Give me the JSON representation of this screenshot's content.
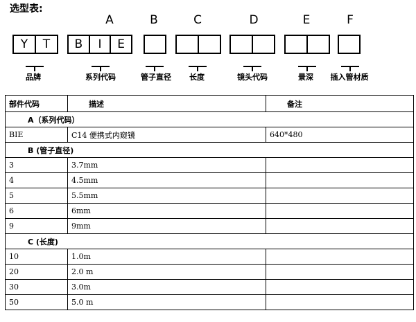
{
  "title": "选型表:",
  "letters": [
    "A",
    "B",
    "C",
    "D",
    "E",
    "F"
  ],
  "boxes": {
    "brand": [
      "Y",
      "T"
    ],
    "series": [
      "B",
      "I",
      "E"
    ]
  },
  "labels": [
    "品牌",
    "系列代码",
    "管子直径",
    "长度",
    "镜头代码",
    "景深",
    "插入管材质"
  ],
  "table": {
    "headers": [
      "部件代码",
      "描述",
      "备注"
    ],
    "sections": [
      {
        "title": "A（系列代码）",
        "rows": [
          [
            "BIE",
            "C14 便携式内窥镜",
            "640*480"
          ]
        ]
      },
      {
        "title": "B (管子直径)",
        "rows": [
          [
            "3",
            "3.7mm",
            ""
          ],
          [
            "4",
            "4.5mm",
            ""
          ],
          [
            "5",
            "5.5mm",
            ""
          ],
          [
            "6",
            "6mm",
            ""
          ],
          [
            "9",
            "9mm",
            ""
          ]
        ]
      },
      {
        "title": "C (长度)",
        "rows": [
          [
            "10",
            "1.0m",
            ""
          ],
          [
            "20",
            "2.0 m",
            ""
          ],
          [
            "30",
            "3.0m",
            ""
          ],
          [
            "50",
            "5.0 m",
            ""
          ]
        ]
      }
    ]
  }
}
